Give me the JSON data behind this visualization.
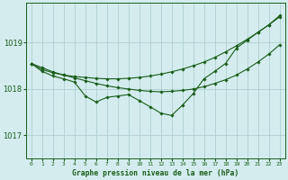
{
  "background_color": "#d4ecee",
  "grid_color": "#b0d0d0",
  "line_color": "#1a5c1a",
  "marker_color": "#1a5c1a",
  "title": "Graphe pression niveau de la mer (hPa)",
  "xlabel_ticks": [
    "0",
    "1",
    "2",
    "3",
    "4",
    "5",
    "6",
    "7",
    "8",
    "9",
    "10",
    "11",
    "12",
    "13",
    "14",
    "15",
    "16",
    "17",
    "18",
    "19",
    "20",
    "21",
    "22",
    "23"
  ],
  "yticks": [
    1017,
    1018,
    1019
  ],
  "ylim": [
    1016.5,
    1019.85
  ],
  "xlim": [
    -0.5,
    23.5
  ],
  "series1": [
    1018.55,
    1018.42,
    1018.35,
    1018.3,
    1018.27,
    1018.25,
    1018.23,
    1018.22,
    1018.22,
    1018.23,
    1018.25,
    1018.28,
    1018.32,
    1018.37,
    1018.43,
    1018.5,
    1018.58,
    1018.68,
    1018.8,
    1018.93,
    1019.07,
    1019.22,
    1019.38,
    1019.55
  ],
  "series2": [
    1018.55,
    1018.46,
    1018.37,
    1018.3,
    1018.24,
    1018.18,
    1018.12,
    1018.07,
    1018.03,
    1018.0,
    1017.97,
    1017.95,
    1017.94,
    1017.95,
    1017.97,
    1018.0,
    1018.05,
    1018.12,
    1018.2,
    1018.3,
    1018.43,
    1018.58,
    1018.75,
    1018.95
  ],
  "series3": [
    1018.55,
    1018.38,
    1018.28,
    1018.22,
    1018.15,
    1017.85,
    1017.72,
    1017.82,
    1017.85,
    1017.88,
    1017.75,
    1017.62,
    1017.48,
    1017.43,
    1017.65,
    1017.9,
    1018.22,
    1018.38,
    1018.55,
    1018.88,
    1019.05,
    1019.22,
    1019.38,
    1019.58
  ]
}
